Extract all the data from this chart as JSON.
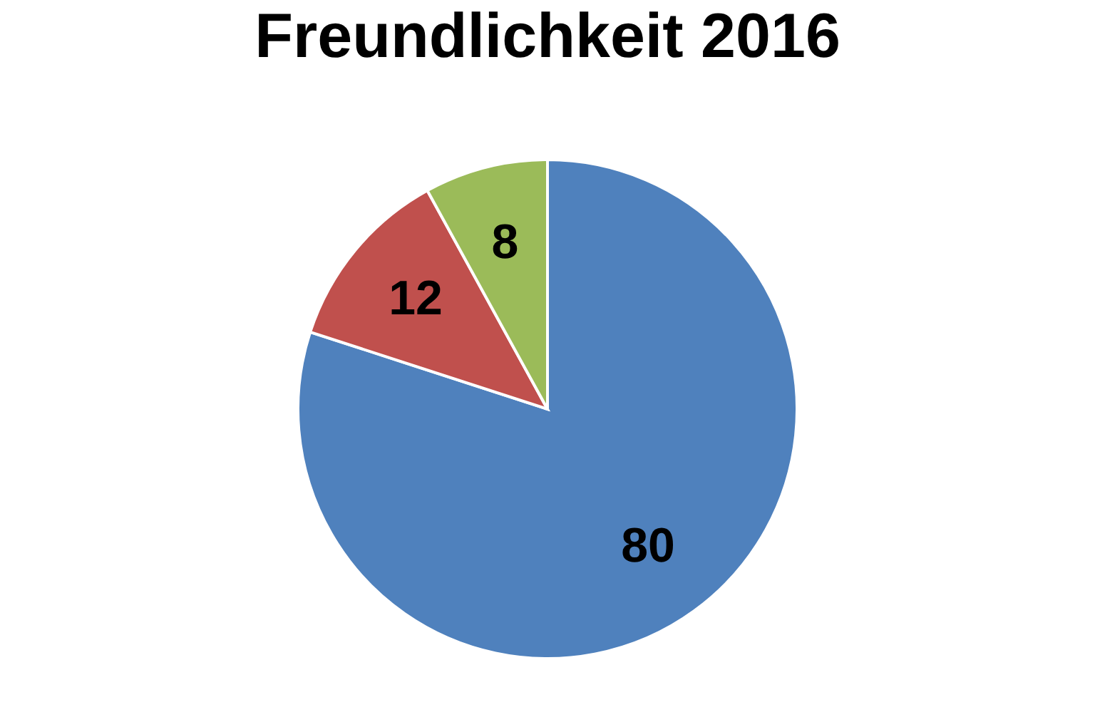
{
  "chart_data": {
    "type": "pie",
    "title": "Freundlichkeit 2016",
    "categories": [
      null,
      null,
      null
    ],
    "values": [
      80,
      12,
      8
    ],
    "colors": [
      "#4f81bd",
      "#c0504d",
      "#9bbb59"
    ],
    "data_labels": true
  }
}
